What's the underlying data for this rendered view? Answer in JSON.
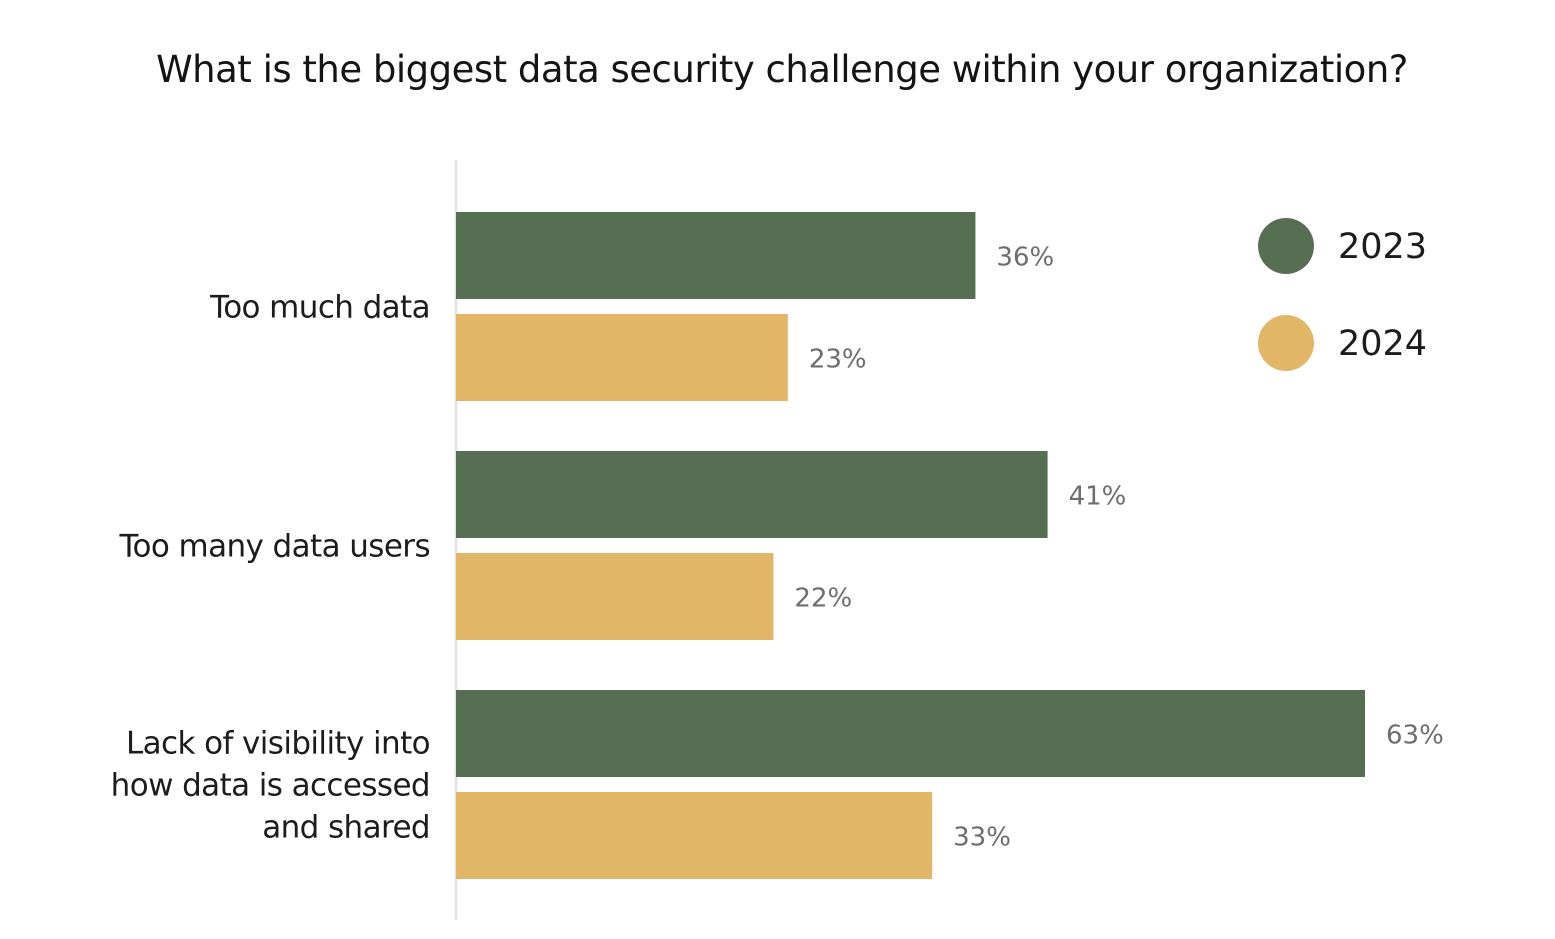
{
  "chart_data": {
    "type": "bar",
    "orientation": "horizontal",
    "title": "What is the biggest data security challenge within your organization?",
    "xlabel": "",
    "ylabel": "",
    "categories": [
      "Too much data",
      "Too many data users",
      "Lack of visibility into how data is accessed and shared"
    ],
    "category_lines": [
      [
        "Too much data"
      ],
      [
        "Too many data users"
      ],
      [
        "Lack of visibility into",
        "how data is accessed",
        "and shared"
      ]
    ],
    "series": [
      {
        "name": "2023",
        "color": "#566e51",
        "values": [
          36,
          41,
          63
        ]
      },
      {
        "name": "2024",
        "color": "#e2b667",
        "values": [
          23,
          22,
          33
        ]
      }
    ],
    "value_suffix": "%",
    "xlim": [
      0,
      100
    ],
    "legend": "top-right",
    "grid": false,
    "axis_color": "#e4e4e4"
  }
}
